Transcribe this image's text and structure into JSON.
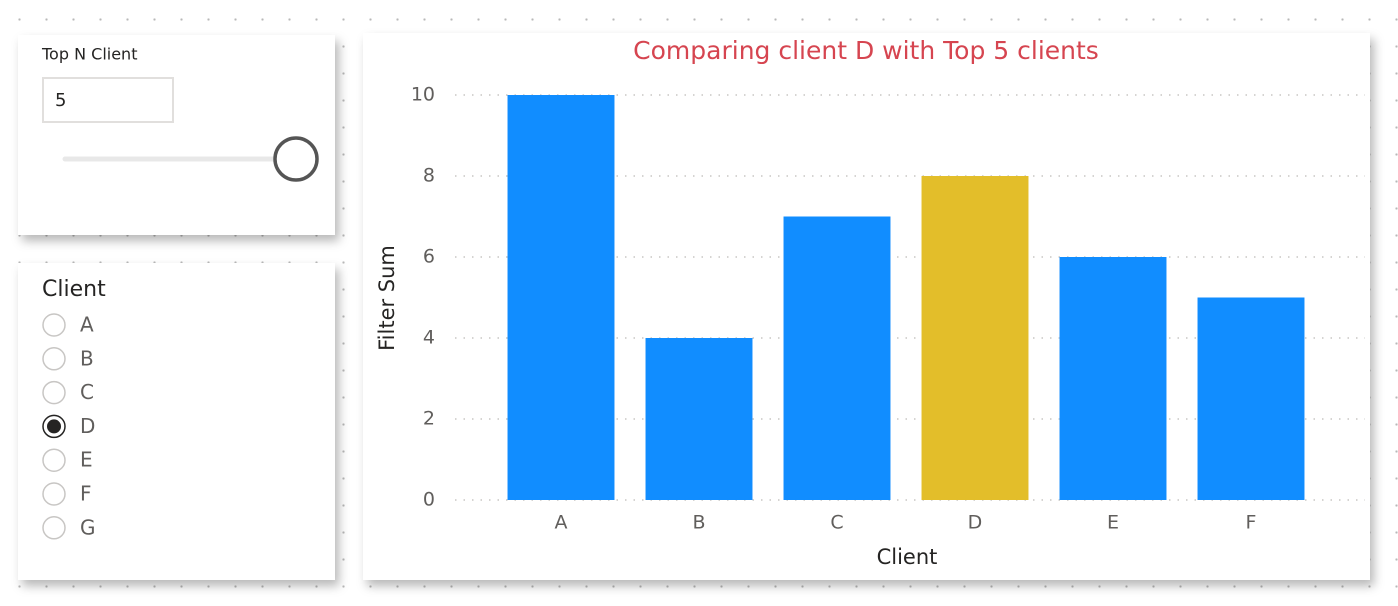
{
  "topn_slicer": {
    "title": "Top N Client",
    "value": "5"
  },
  "client_slicer": {
    "title": "Client",
    "options": [
      "A",
      "B",
      "C",
      "D",
      "E",
      "F",
      "G"
    ],
    "selected": "D"
  },
  "chart_data": {
    "type": "bar",
    "title": "Comparing client D with Top 5 clients",
    "x_label": "Client",
    "y_label": "Filter Sum",
    "categories": [
      "A",
      "B",
      "C",
      "D",
      "E",
      "F"
    ],
    "values": [
      10,
      4,
      7,
      8,
      6,
      5
    ],
    "colors": [
      "#118dff",
      "#118dff",
      "#118dff",
      "#e3be2a",
      "#118dff",
      "#118dff"
    ],
    "ylim": [
      0,
      10
    ],
    "yticks": [
      0,
      2,
      4,
      6,
      8,
      10
    ],
    "grid": true
  }
}
